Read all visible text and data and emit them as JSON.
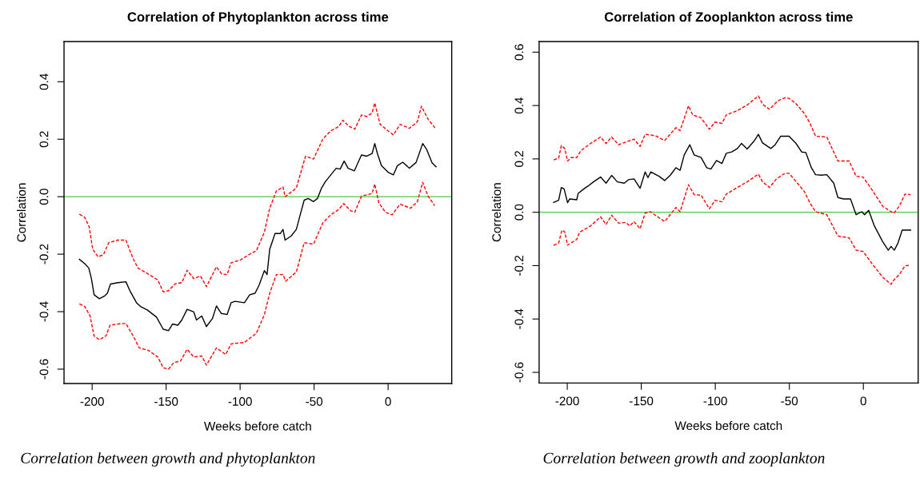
{
  "chart_data": [
    {
      "type": "line",
      "title": "Correlation of Phytoplankton across time",
      "xlabel": "Weeks before catch",
      "ylabel": "Correlation",
      "annotations": [
        "Correlation between growth and phytoplankton"
      ],
      "xlim": [
        -219,
        43
      ],
      "ylim": [
        -0.65,
        0.54
      ],
      "xticks": [
        -200,
        -150,
        -100,
        -50,
        0
      ],
      "yticks": [
        {
          "value": -0.6,
          "label": "-0.6"
        },
        {
          "value": -0.4,
          "label": "-0.4"
        },
        {
          "value": -0.2,
          "label": "-0.2"
        },
        {
          "value": 0.0,
          "label": "0.0"
        },
        {
          "value": 0.2,
          "label": "0.2"
        },
        {
          "value": 0.4,
          "label": "0.4"
        }
      ],
      "grid": false,
      "legend": false,
      "marker": "none",
      "ref_lines": [
        {
          "axis": "y",
          "value": 0,
          "color": "#4fc94a",
          "line_style": "solid"
        }
      ],
      "series": [
        {
          "color": "#000000",
          "line_style": "solid",
          "x": [
            -208.6,
            -205,
            -202.3,
            -200.5,
            -198.7,
            -195.1,
            -191.5,
            -189.7,
            -187.6,
            -182.6,
            -177.2,
            -174.5,
            -170,
            -167.3,
            -162.8,
            -156.5,
            -152,
            -148.4,
            -145.7,
            -142.1,
            -139.4,
            -135.8,
            -131.3,
            -129.5,
            -125.9,
            -122.8,
            -118.7,
            -116,
            -112.8,
            -108.8,
            -106.1,
            -103.4,
            -97.1,
            -93.5,
            -89.9,
            -87.2,
            -83.6,
            -81.8,
            -80,
            -76.4,
            -72.8,
            -71,
            -69.6,
            -65.6,
            -62,
            -59.4,
            -56.7,
            -54,
            -50.4,
            -47.7,
            -45,
            -42.3,
            -38.7,
            -35.1,
            -32.4,
            -29.7,
            -27,
            -22.8,
            -18,
            -14.4,
            -10.8,
            -9,
            -7.2,
            -4.5,
            0,
            3.6,
            6.3,
            9.9,
            14.4,
            18.9,
            23.4,
            26.1,
            29.7,
            32.4
          ],
          "values": [
            -0.218,
            -0.233,
            -0.248,
            -0.285,
            -0.341,
            -0.355,
            -0.345,
            -0.336,
            -0.304,
            -0.299,
            -0.296,
            -0.327,
            -0.369,
            -0.382,
            -0.394,
            -0.419,
            -0.461,
            -0.466,
            -0.443,
            -0.447,
            -0.429,
            -0.392,
            -0.401,
            -0.429,
            -0.415,
            -0.452,
            -0.424,
            -0.38,
            -0.406,
            -0.41,
            -0.369,
            -0.364,
            -0.369,
            -0.341,
            -0.336,
            -0.308,
            -0.257,
            -0.271,
            -0.183,
            -0.128,
            -0.128,
            -0.114,
            -0.151,
            -0.137,
            -0.114,
            -0.063,
            -0.012,
            -0.006,
            -0.017,
            -0.006,
            0.03,
            0.053,
            0.076,
            0.099,
            0.096,
            0.124,
            0.099,
            0.09,
            0.145,
            0.141,
            0.15,
            0.185,
            0.15,
            0.108,
            0.085,
            0.076,
            0.108,
            0.12,
            0.099,
            0.119,
            0.185,
            0.164,
            0.118,
            0.104
          ]
        },
        {
          "color": "#ff0000",
          "line_style": "dashed",
          "x": [
            -208.6,
            -205,
            -202,
            -199.6,
            -196,
            -192.4,
            -188.8,
            -182.6,
            -177.2,
            -172.7,
            -169.1,
            -162.8,
            -155.6,
            -152,
            -148.4,
            -143.9,
            -139.4,
            -135.8,
            -131.3,
            -126.8,
            -122.8,
            -116,
            -112.4,
            -108.8,
            -106.1,
            -99.8,
            -92.6,
            -89,
            -83.6,
            -80,
            -75.5,
            -71,
            -69.6,
            -62,
            -55.8,
            -50.4,
            -44.1,
            -38.7,
            -33.3,
            -30.6,
            -26.1,
            -22.5,
            -18,
            -14.4,
            -10.8,
            -9,
            -5.4,
            0,
            3.6,
            8.1,
            14.4,
            19.8,
            22.5,
            27,
            32.4
          ],
          "values": [
            -0.061,
            -0.072,
            -0.105,
            -0.183,
            -0.209,
            -0.202,
            -0.16,
            -0.151,
            -0.151,
            -0.211,
            -0.248,
            -0.267,
            -0.29,
            -0.331,
            -0.327,
            -0.303,
            -0.299,
            -0.256,
            -0.285,
            -0.276,
            -0.313,
            -0.244,
            -0.269,
            -0.271,
            -0.23,
            -0.22,
            -0.197,
            -0.188,
            -0.123,
            -0.04,
            0.02,
            0.034,
            0.0,
            0.03,
            0.141,
            0.131,
            0.201,
            0.229,
            0.244,
            0.266,
            0.244,
            0.235,
            0.284,
            0.279,
            0.291,
            0.326,
            0.252,
            0.229,
            0.215,
            0.252,
            0.238,
            0.261,
            0.315,
            0.27,
            0.235
          ]
        },
        {
          "color": "#ff0000",
          "line_style": "dashed",
          "x": [
            -208.6,
            -205,
            -201.4,
            -198.7,
            -195.1,
            -190.6,
            -187.9,
            -182.6,
            -177.2,
            -171.8,
            -168.2,
            -161.9,
            -155.6,
            -152,
            -148.4,
            -144.8,
            -140.3,
            -135.8,
            -131.3,
            -125.9,
            -122.8,
            -116,
            -109.7,
            -106.1,
            -97.1,
            -89,
            -83.6,
            -80,
            -75.5,
            -71,
            -69.2,
            -62,
            -56.7,
            -50.4,
            -44.1,
            -38.7,
            -33.3,
            -30,
            -25.2,
            -22.5,
            -18,
            -10.8,
            -9,
            -6.3,
            -1.8,
            2.7,
            8.1,
            15.3,
            19.8,
            23.4,
            27,
            31.5
          ],
          "values": [
            -0.373,
            -0.382,
            -0.415,
            -0.484,
            -0.498,
            -0.484,
            -0.447,
            -0.443,
            -0.441,
            -0.489,
            -0.526,
            -0.535,
            -0.558,
            -0.595,
            -0.6,
            -0.577,
            -0.572,
            -0.531,
            -0.558,
            -0.554,
            -0.586,
            -0.526,
            -0.549,
            -0.512,
            -0.507,
            -0.475,
            -0.41,
            -0.336,
            -0.271,
            -0.271,
            -0.294,
            -0.262,
            -0.16,
            -0.165,
            -0.091,
            -0.063,
            -0.044,
            -0.024,
            -0.049,
            -0.054,
            0.002,
            0.011,
            0.044,
            -0.021,
            -0.054,
            -0.063,
            -0.026,
            -0.04,
            -0.017,
            0.05,
            0.002,
            -0.031
          ]
        }
      ]
    },
    {
      "type": "line",
      "title": "Correlation of Zooplankton across time",
      "xlabel": "Weeks before catch",
      "ylabel": "Correlation",
      "annotations": [
        "Correlation between growth and zooplankton"
      ],
      "xlim": [
        -219,
        37
      ],
      "ylim": [
        -0.64,
        0.64
      ],
      "xticks": [
        -200,
        -150,
        -100,
        -50,
        0
      ],
      "yticks": [
        {
          "value": -0.6,
          "label": "-0.6"
        },
        {
          "value": -0.4,
          "label": "-0.4"
        },
        {
          "value": -0.2,
          "label": "-0.2"
        },
        {
          "value": 0.0,
          "label": "0.0"
        },
        {
          "value": 0.2,
          "label": "0.2"
        },
        {
          "value": 0.4,
          "label": "0.4"
        },
        {
          "value": 0.6,
          "label": "0.6"
        }
      ],
      "grid": false,
      "legend": false,
      "marker": "none",
      "ref_lines": [
        {
          "axis": "y",
          "value": 0,
          "color": "#4fc94a",
          "line_style": "solid"
        }
      ],
      "series": [
        {
          "color": "#000000",
          "line_style": "solid",
          "x": [
            -209.2,
            -205.8,
            -204,
            -202.1,
            -199.8,
            -198.3,
            -193.6,
            -192.6,
            -188.9,
            -186,
            -182.3,
            -177.5,
            -173.8,
            -170,
            -166.2,
            -161.5,
            -158.7,
            -154.9,
            -150.8,
            -147.4,
            -145.5,
            -143.6,
            -138,
            -134.2,
            -130.4,
            -126.6,
            -123.8,
            -121,
            -117.2,
            -114.3,
            -109.6,
            -105.8,
            -103,
            -99.2,
            -95.5,
            -92.6,
            -88.9,
            -85.1,
            -82.3,
            -78.5,
            -73.8,
            -70.9,
            -68.1,
            -62.5,
            -59.6,
            -55.8,
            -50.2,
            -45.5,
            -41.7,
            -38.9,
            -35.1,
            -32.3,
            -28.5,
            -24.7,
            -20,
            -17.2,
            -13.4,
            -8.7,
            -4.9,
            -1.1,
            0.8,
            3.6,
            7.4,
            13,
            16.8,
            18.7,
            20.9,
            23.4,
            26.2,
            31.9
          ],
          "values": [
            0.037,
            0.045,
            0.093,
            0.087,
            0.036,
            0.05,
            0.047,
            0.071,
            0.087,
            0.098,
            0.114,
            0.132,
            0.109,
            0.138,
            0.114,
            0.109,
            0.122,
            0.125,
            0.09,
            0.151,
            0.13,
            0.151,
            0.135,
            0.119,
            0.139,
            0.167,
            0.157,
            0.215,
            0.253,
            0.215,
            0.205,
            0.167,
            0.162,
            0.194,
            0.183,
            0.221,
            0.226,
            0.239,
            0.258,
            0.237,
            0.267,
            0.292,
            0.26,
            0.239,
            0.253,
            0.285,
            0.285,
            0.258,
            0.226,
            0.224,
            0.167,
            0.141,
            0.139,
            0.141,
            0.109,
            0.055,
            0.05,
            0.05,
            -0.009,
            0.002,
            -0.009,
            0.007,
            -0.051,
            -0.11,
            -0.142,
            -0.128,
            -0.142,
            -0.115,
            -0.067,
            -0.067
          ]
        },
        {
          "color": "#ff0000",
          "line_style": "dashed",
          "x": [
            -209.2,
            -205.8,
            -204,
            -201.7,
            -199.8,
            -197.4,
            -193.6,
            -190.8,
            -184.2,
            -177.5,
            -173.8,
            -170,
            -165.3,
            -160.6,
            -154.9,
            -150.8,
            -147.4,
            -143.6,
            -139.8,
            -134.2,
            -126.6,
            -123.8,
            -118.1,
            -115.3,
            -109.6,
            -104,
            -100.2,
            -95.5,
            -92.6,
            -85.1,
            -78.5,
            -70.9,
            -68.1,
            -63.4,
            -57.7,
            -53,
            -50.2,
            -45.5,
            -39.8,
            -36,
            -32.3,
            -24.7,
            -17.2,
            -9.6,
            -4.9,
            -0.2,
            5.5,
            13,
            18.7,
            20.6,
            24.3,
            28.1,
            31.9
          ],
          "values": [
            0.196,
            0.203,
            0.25,
            0.239,
            0.192,
            0.205,
            0.205,
            0.231,
            0.258,
            0.282,
            0.258,
            0.282,
            0.253,
            0.263,
            0.274,
            0.247,
            0.292,
            0.29,
            0.285,
            0.269,
            0.317,
            0.306,
            0.399,
            0.365,
            0.354,
            0.311,
            0.338,
            0.333,
            0.365,
            0.381,
            0.402,
            0.436,
            0.405,
            0.386,
            0.418,
            0.429,
            0.427,
            0.407,
            0.37,
            0.333,
            0.285,
            0.282,
            0.192,
            0.192,
            0.135,
            0.132,
            0.087,
            0.023,
            0.002,
            -0.003,
            0.023,
            0.068,
            0.066
          ]
        },
        {
          "color": "#ff0000",
          "line_style": "dashed",
          "x": [
            -209.2,
            -205.8,
            -203.6,
            -201.7,
            -199.8,
            -193.6,
            -191.7,
            -184.2,
            -177.5,
            -173.8,
            -170,
            -165.3,
            -160.6,
            -157.7,
            -154.9,
            -150.8,
            -147.4,
            -143.6,
            -139.8,
            -134.2,
            -126.6,
            -123.8,
            -118.1,
            -114.3,
            -109.6,
            -104,
            -100.2,
            -95.5,
            -92.6,
            -85.1,
            -78.5,
            -70.9,
            -68.1,
            -63.4,
            -58.7,
            -53,
            -50.2,
            -43.6,
            -39.8,
            -36,
            -32.3,
            -24.7,
            -17.2,
            -9.6,
            -4.9,
            -0.2,
            5.5,
            13,
            18.7,
            20.6,
            24.3,
            28.1,
            31.9
          ],
          "values": [
            -0.124,
            -0.115,
            -0.067,
            -0.073,
            -0.123,
            -0.102,
            -0.075,
            -0.051,
            -0.017,
            -0.046,
            -0.011,
            -0.041,
            -0.038,
            -0.051,
            -0.035,
            -0.062,
            -0.003,
            0.002,
            -0.014,
            -0.035,
            0.018,
            0.002,
            0.103,
            0.066,
            0.064,
            0.013,
            0.045,
            0.039,
            0.068,
            0.093,
            0.114,
            0.143,
            0.114,
            0.093,
            0.125,
            0.146,
            0.146,
            0.103,
            0.077,
            0.034,
            0.002,
            -0.009,
            -0.089,
            -0.096,
            -0.142,
            -0.147,
            -0.19,
            -0.243,
            -0.27,
            -0.254,
            -0.233,
            -0.201,
            -0.198
          ]
        }
      ]
    }
  ]
}
